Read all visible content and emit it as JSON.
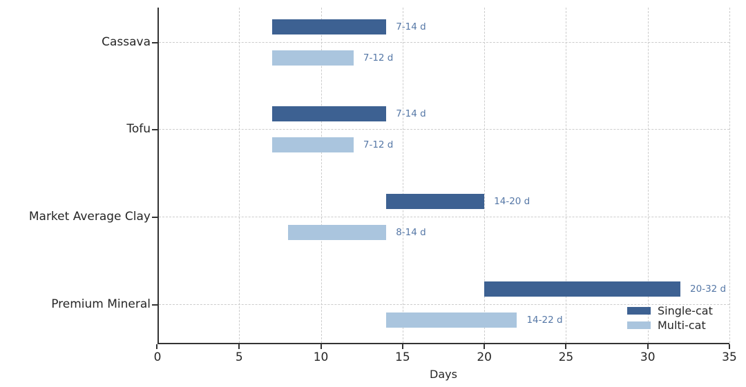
{
  "chart_data": {
    "type": "bar",
    "orientation": "horizontal",
    "title": "",
    "xlabel": "Days",
    "ylabel": "",
    "xlim": [
      0,
      35
    ],
    "x_ticks": [
      0,
      5,
      10,
      15,
      20,
      25,
      30,
      35
    ],
    "grid": "dashed",
    "legend_position": "lower-right",
    "categories": [
      "Cassava",
      "Tofu",
      "Market Average Clay",
      "Premium Mineral"
    ],
    "series": [
      {
        "name": "Single-cat",
        "color": "#3d6192",
        "ranges": [
          [
            7,
            14
          ],
          [
            7,
            14
          ],
          [
            14,
            20
          ],
          [
            20,
            32
          ]
        ],
        "labels": [
          "7-14 d",
          "7-14 d",
          "14-20 d",
          "20-32 d"
        ]
      },
      {
        "name": "Multi-cat",
        "color": "#aac5de",
        "ranges": [
          [
            7,
            12
          ],
          [
            7,
            12
          ],
          [
            8,
            14
          ],
          [
            14,
            22
          ]
        ],
        "labels": [
          "7-12 d",
          "7-12 d",
          "8-14 d",
          "14-22 d"
        ]
      }
    ],
    "colors": {
      "annotation_text": "#5577a6",
      "axis_text": "#262626",
      "grid_line": "#cccccc",
      "spine": "#333333"
    }
  }
}
